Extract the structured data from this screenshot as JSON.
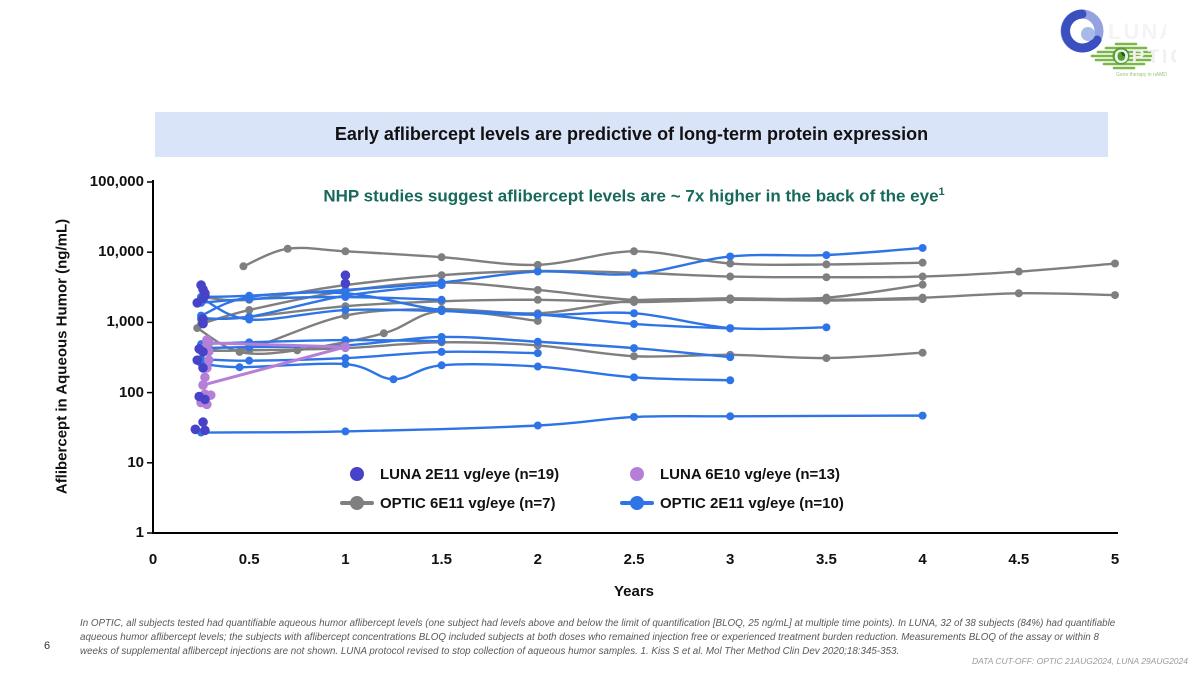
{
  "page": {
    "number": "6"
  },
  "header": {
    "title": "Early aflibercept levels are predictive of long-term protein expression",
    "subtitle": "NHP studies suggest aflibercept levels are ~ 7x higher in the back of the eye",
    "subtitle_sup": "1"
  },
  "logos": {
    "luna_text": "LUNA",
    "optic_text": "OPTIC",
    "optic_tagline": "Gene therapy in nAMD"
  },
  "footnote": {
    "text": "In OPTIC, all subjects tested had quantifiable aqueous humor aflibercept levels (one subject had levels above and below the limit of quantification [BLOQ, 25 ng/mL] at multiple time points). In LUNA, 32 of 38 subjects (84%) had quantifiable aqueous humor aflibercept levels; the subjects with aflibercept concentrations BLOQ included subjects at both doses who remained injection free or experienced treatment burden reduction.  Measurements BLOQ of the assay or within 8 weeks of supplemental aflibercept injections are not shown. LUNA protocol revised to stop collection of aqueous humor samples. 1. Kiss S et al. Mol Ther Method Clin Dev 2020;18:345-353.",
    "data_cutoff": "DATA CUT-OFF: OPTIC 21AUG2024, LUNA 29AUG2024"
  },
  "chart_data": {
    "type": "line",
    "title": "Early aflibercept levels are predictive of long-term protein expression",
    "xlabel": "Years",
    "ylabel": "Aflibercept in Aqueous Humor (ng/mL)",
    "xlim": [
      0,
      5
    ],
    "ylim": [
      1,
      100000
    ],
    "y_scale": "log",
    "grid": false,
    "legend_position": "bottom-inside",
    "x_ticks": [
      {
        "label": "0",
        "value": 0
      },
      {
        "label": "0.5",
        "value": 0.5
      },
      {
        "label": "1",
        "value": 1
      },
      {
        "label": "1.5",
        "value": 1.5
      },
      {
        "label": "2",
        "value": 2
      },
      {
        "label": "2.5",
        "value": 2.5
      },
      {
        "label": "3",
        "value": 3
      },
      {
        "label": "3.5",
        "value": 3.5
      },
      {
        "label": "4",
        "value": 4
      },
      {
        "label": "4.5",
        "value": 4.5
      },
      {
        "label": "5",
        "value": 5
      }
    ],
    "y_ticks": [
      {
        "label": "100,000",
        "value": 100000
      },
      {
        "label": "10,000",
        "value": 10000
      },
      {
        "label": "1,000",
        "value": 1000
      },
      {
        "label": "100",
        "value": 100
      },
      {
        "label": "10",
        "value": 10
      },
      {
        "label": "1",
        "value": 1
      }
    ],
    "legend": [
      {
        "label": "LUNA 2E11 vg/eye (n=19)",
        "marker": "dot",
        "color": "#4643c8"
      },
      {
        "label": "LUNA 6E10 vg/eye (n=13)",
        "marker": "dot",
        "color": "#b57fd8"
      },
      {
        "label": "OPTIC 6E11 vg/eye (n=7)",
        "marker": "line-dot",
        "color": "#7f7f7f"
      },
      {
        "label": "OPTIC 2E11 vg/eye (n=10)",
        "marker": "line-dot",
        "color": "#2e74e6"
      }
    ],
    "series": [
      {
        "name": "OPTIC 6E11 vg/eye (n=7)",
        "type": "line",
        "color": "#7f7f7f",
        "lines": [
          [
            [
              0.47,
              6300
            ],
            [
              0.7,
              11200
            ],
            [
              1,
              10300
            ],
            [
              1.5,
              8500
            ],
            [
              2,
              6600
            ],
            [
              2.5,
              10300
            ],
            [
              3,
              6900
            ],
            [
              3.5,
              6700
            ],
            [
              4,
              7100
            ]
          ],
          [
            [
              0.25,
              2300
            ],
            [
              0.5,
              2100
            ],
            [
              1,
              3400
            ],
            [
              1.5,
              4700
            ],
            [
              2,
              5400
            ],
            [
              2.5,
              5100
            ],
            [
              3,
              4500
            ],
            [
              3.5,
              4400
            ],
            [
              4,
              4500
            ],
            [
              4.5,
              5300
            ],
            [
              5,
              6900
            ]
          ],
          [
            [
              0.25,
              950
            ],
            [
              0.5,
              1500
            ],
            [
              1,
              2800
            ],
            [
              1.5,
              3700
            ],
            [
              2,
              2900
            ],
            [
              2.5,
              2100
            ],
            [
              3,
              2200
            ],
            [
              3.5,
              2100
            ],
            [
              4,
              2250
            ],
            [
              4.5,
              2600
            ],
            [
              5,
              2450
            ]
          ],
          [
            [
              0.23,
              830
            ],
            [
              0.45,
              380
            ],
            [
              0.75,
              400
            ],
            [
              1.2,
              700
            ],
            [
              1.5,
              1450
            ],
            [
              2,
              1050
            ]
          ],
          [
            [
              0.25,
              420
            ],
            [
              0.5,
              430
            ],
            [
              1,
              1250
            ],
            [
              1.5,
              1550
            ],
            [
              2,
              1350
            ],
            [
              2.5,
              2050
            ],
            [
              3,
              2150
            ],
            [
              3.5,
              2250
            ],
            [
              4,
              3450
            ]
          ],
          [
            [
              0.25,
              390
            ],
            [
              0.5,
              400
            ],
            [
              1,
              430
            ],
            [
              1.5,
              520
            ],
            [
              2,
              470
            ],
            [
              2.5,
              330
            ],
            [
              3,
              345
            ],
            [
              3.5,
              310
            ],
            [
              4,
              370
            ]
          ],
          [
            [
              0.25,
              1100
            ],
            [
              0.5,
              1200
            ],
            [
              1,
              1700
            ],
            [
              1.5,
              2000
            ],
            [
              2,
              2100
            ],
            [
              2.5,
              1950
            ],
            [
              3,
              2100
            ],
            [
              3.5,
              2050
            ],
            [
              4,
              2150
            ]
          ]
        ]
      },
      {
        "name": "OPTIC 2E11 vg/eye (n=10)",
        "type": "line",
        "color": "#2e74e6",
        "lines": [
          [
            [
              0.25,
              2300
            ],
            [
              0.5,
              2400
            ],
            [
              1,
              2900
            ],
            [
              1.5,
              3700
            ],
            [
              2,
              5300
            ],
            [
              2.5,
              4900
            ],
            [
              3,
              8700
            ],
            [
              3.5,
              9100
            ],
            [
              4,
              11500
            ]
          ],
          [
            [
              0.25,
              1250
            ],
            [
              0.5,
              2300
            ],
            [
              1,
              2600
            ],
            [
              1.5,
              1500
            ],
            [
              2,
              1280
            ],
            [
              2.5,
              1350
            ],
            [
              3,
              830
            ],
            [
              3.5,
              850
            ]
          ],
          [
            [
              0.25,
              2250
            ],
            [
              0.5,
              1100
            ],
            [
              1,
              1500
            ],
            [
              1.5,
              1450
            ],
            [
              2,
              1300
            ],
            [
              2.5,
              950
            ],
            [
              3,
              820
            ]
          ],
          [
            [
              0.25,
              430
            ],
            [
              0.5,
              445
            ],
            [
              1,
              470
            ],
            [
              1.5,
              620
            ],
            [
              2,
              530
            ],
            [
              2.5,
              430
            ],
            [
              3,
              320
            ]
          ],
          [
            [
              0.25,
              260
            ],
            [
              0.45,
              230
            ],
            [
              1,
              255
            ],
            [
              1.25,
              155
            ],
            [
              1.5,
              245
            ],
            [
              2,
              235
            ],
            [
              2.5,
              165
            ],
            [
              3,
              150
            ]
          ],
          [
            [
              0.25,
              27
            ],
            [
              1,
              28
            ],
            [
              2,
              34
            ],
            [
              2.5,
              45
            ],
            [
              3,
              46
            ],
            [
              4,
              47
            ]
          ],
          [
            [
              0.25,
              1150
            ],
            [
              0.5,
              1200
            ],
            [
              1,
              2400
            ],
            [
              1.5,
              3400
            ]
          ],
          [
            [
              0.25,
              300
            ],
            [
              0.5,
              285
            ],
            [
              1,
              310
            ],
            [
              1.5,
              380
            ],
            [
              2,
              365
            ]
          ],
          [
            [
              0.25,
              490
            ],
            [
              0.5,
              520
            ],
            [
              1,
              560
            ],
            [
              1.5,
              540
            ]
          ],
          [
            [
              0.25,
              1900
            ],
            [
              0.5,
              2150
            ],
            [
              1,
              2300
            ],
            [
              1.5,
              2100
            ]
          ]
        ]
      },
      {
        "name": "LUNA 6E10 vg/eye (n=13)",
        "type": "scatter",
        "color": "#b57fd8",
        "lines": [
          [
            [
              0.29,
              510
            ],
            [
              1.0,
              447
            ]
          ],
          [
            [
              0.26,
              128
            ],
            [
              1.0,
              447
            ]
          ]
        ],
        "points": [
          [
            0.28,
            560
          ],
          [
            0.29,
            510
          ],
          [
            0.29,
            385
          ],
          [
            0.29,
            290
          ],
          [
            0.28,
            225
          ],
          [
            0.27,
            165
          ],
          [
            0.26,
            128
          ],
          [
            0.27,
            95
          ],
          [
            0.3,
            92
          ],
          [
            0.25,
            72
          ],
          [
            0.28,
            68
          ],
          [
            0.27,
            440
          ],
          [
            1.0,
            447
          ]
        ]
      },
      {
        "name": "LUNA 2E11 vg/eye (n=19)",
        "type": "scatter",
        "color": "#4643c8",
        "points": [
          [
            0.25,
            3400
          ],
          [
            0.26,
            2950
          ],
          [
            0.27,
            2600
          ],
          [
            0.27,
            2400
          ],
          [
            0.26,
            2200
          ],
          [
            0.23,
            1900
          ],
          [
            0.26,
            1120
          ],
          [
            0.26,
            960
          ],
          [
            0.24,
            420
          ],
          [
            0.26,
            380
          ],
          [
            0.23,
            290
          ],
          [
            0.26,
            225
          ],
          [
            0.24,
            88
          ],
          [
            0.27,
            80
          ],
          [
            0.26,
            38
          ],
          [
            0.22,
            30
          ],
          [
            0.27,
            29
          ],
          [
            1.0,
            4700
          ],
          [
            1.0,
            3600
          ]
        ]
      }
    ]
  }
}
